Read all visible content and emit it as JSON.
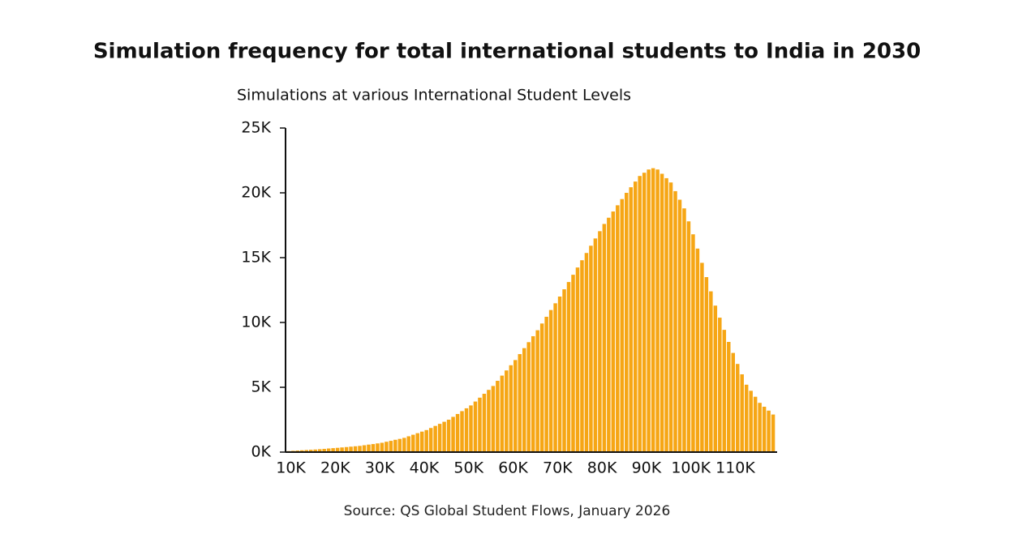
{
  "chart_data": {
    "type": "histogram",
    "title": "Simulation frequency for total international students to India in 2030",
    "subtitle": "Simulations at various International Student Levels",
    "source": "Source: QS Global Student Flows, January 2026",
    "color": "#f6a615",
    "bins": [
      9000,
      10000,
      11000,
      12000,
      13000,
      14000,
      15000,
      16000,
      17000,
      18000,
      19000,
      20000,
      21000,
      22000,
      23000,
      24000,
      25000,
      26000,
      27000,
      28000,
      29000,
      30000,
      31000,
      32000,
      33000,
      34000,
      35000,
      36000,
      37000,
      38000,
      39000,
      40000,
      41000,
      42000,
      43000,
      44000,
      45000,
      46000,
      47000,
      48000,
      49000,
      50000,
      51000,
      52000,
      53000,
      54000,
      55000,
      56000,
      57000,
      58000,
      59000,
      60000,
      61000,
      62000,
      63000,
      64000,
      65000,
      66000,
      67000,
      68000,
      69000,
      70000,
      71000,
      72000,
      73000,
      74000,
      75000,
      76000,
      77000,
      78000,
      79000,
      80000,
      81000,
      82000,
      83000,
      84000,
      85000,
      86000,
      87000,
      88000,
      89000,
      90000,
      91000,
      92000,
      93000,
      94000,
      95000,
      96000,
      97000,
      98000,
      99000,
      100000,
      101000,
      102000,
      103000,
      104000,
      105000,
      106000,
      107000,
      108000,
      109000,
      110000,
      111000,
      112000,
      113000,
      114000,
      115000,
      116000,
      117000,
      118000,
      119000
    ],
    "values": [
      80,
      100,
      120,
      140,
      160,
      180,
      200,
      225,
      250,
      280,
      305,
      330,
      360,
      390,
      420,
      450,
      480,
      530,
      580,
      620,
      670,
      720,
      800,
      870,
      950,
      1020,
      1100,
      1220,
      1340,
      1460,
      1580,
      1700,
      1860,
      2020,
      2180,
      2340,
      2500,
      2720,
      2940,
      3160,
      3380,
      3600,
      3900,
      4200,
      4500,
      4800,
      5100,
      5500,
      5900,
      6300,
      6700,
      7100,
      7560,
      8020,
      8480,
      8940,
      9400,
      9920,
      10440,
      10960,
      11480,
      12000,
      12560,
      13120,
      13680,
      14240,
      14800,
      15360,
      15920,
      16480,
      17040,
      17600,
      18080,
      18560,
      19040,
      19520,
      20000,
      20430,
      20870,
      21300,
      21550,
      21800,
      21900,
      21800,
      21470,
      21130,
      20800,
      20130,
      19470,
      18800,
      17800,
      16800,
      15700,
      14600,
      13500,
      12400,
      11300,
      10370,
      9430,
      8500,
      7650,
      6800,
      6000,
      5200,
      4730,
      4270,
      3800,
      3500,
      3200,
      2900
    ],
    "xlim": [
      8800,
      119400
    ],
    "xticks": [
      {
        "value": 10000,
        "label": "10K"
      },
      {
        "value": 20000,
        "label": "20K"
      },
      {
        "value": 30000,
        "label": "30K"
      },
      {
        "value": 40000,
        "label": "40K"
      },
      {
        "value": 50000,
        "label": "50K"
      },
      {
        "value": 60000,
        "label": "60K"
      },
      {
        "value": 70000,
        "label": "70K"
      },
      {
        "value": 80000,
        "label": "80K"
      },
      {
        "value": 90000,
        "label": "90K"
      },
      {
        "value": 100000,
        "label": "100K"
      },
      {
        "value": 110000,
        "label": "110K"
      }
    ],
    "ylim": [
      0,
      25000
    ],
    "yticks": [
      {
        "value": 0,
        "label": "0K"
      },
      {
        "value": 5000,
        "label": "5K"
      },
      {
        "value": 10000,
        "label": "10K"
      },
      {
        "value": 15000,
        "label": "15K"
      },
      {
        "value": 20000,
        "label": "20K"
      },
      {
        "value": 25000,
        "label": "25K"
      }
    ]
  }
}
